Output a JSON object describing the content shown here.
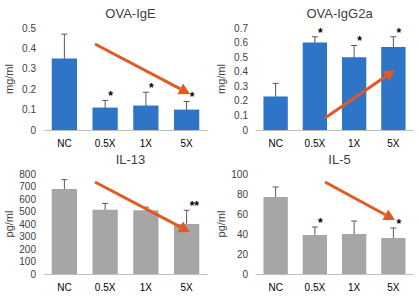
{
  "chart_data": [
    {
      "type": "bar",
      "title": "OVA-IgE",
      "ylabel": "mg/ml",
      "categories": [
        "NC",
        "0.5X",
        "1X",
        "5X"
      ],
      "values": [
        0.35,
        0.11,
        0.12,
        0.1
      ],
      "errors": [
        0.12,
        0.035,
        0.065,
        0.04
      ],
      "significance": [
        null,
        "*",
        "*",
        "*"
      ],
      "color": "#2e75c8",
      "ylim": [
        0,
        0.5
      ],
      "yticks": [
        0,
        0.1,
        0.2,
        0.3,
        0.4,
        0.5
      ],
      "grid": false
    },
    {
      "type": "bar",
      "title": "OVA-IgG2a",
      "ylabel": "mg/ml",
      "categories": [
        "NC",
        "0.5X",
        "1X",
        "5X"
      ],
      "values": [
        0.23,
        0.6,
        0.5,
        0.57
      ],
      "errors": [
        0.09,
        0.04,
        0.08,
        0.07
      ],
      "significance": [
        null,
        "*",
        "*",
        "*"
      ],
      "color": "#2e75c8",
      "ylim": [
        0,
        0.7
      ],
      "yticks": [
        0,
        0.1,
        0.2,
        0.3,
        0.4,
        0.5,
        0.6,
        0.7
      ],
      "grid": false
    },
    {
      "type": "bar",
      "title": "IL-13",
      "ylabel": "pg/ml",
      "categories": [
        "NC",
        "0.5X",
        "1X",
        "5X"
      ],
      "values": [
        680,
        515,
        510,
        400
      ],
      "errors": [
        75,
        50,
        25,
        110
      ],
      "significance": [
        null,
        null,
        null,
        "**"
      ],
      "color": "#a6a6a6",
      "ylim": [
        0,
        800
      ],
      "yticks": [
        0,
        100,
        200,
        300,
        400,
        500,
        600,
        700,
        800
      ],
      "grid": false
    },
    {
      "type": "bar",
      "title": "IL-5",
      "ylabel": "pg/ml",
      "categories": [
        "NC",
        "0.5X",
        "1X",
        "5X"
      ],
      "values": [
        77,
        39,
        40,
        36
      ],
      "errors": [
        10,
        8,
        13,
        10
      ],
      "significance": [
        null,
        "*",
        null,
        "*"
      ],
      "color": "#a6a6a6",
      "ylim": [
        0,
        100
      ],
      "yticks": [
        0,
        20,
        40,
        60,
        80,
        100
      ],
      "grid": false
    }
  ]
}
